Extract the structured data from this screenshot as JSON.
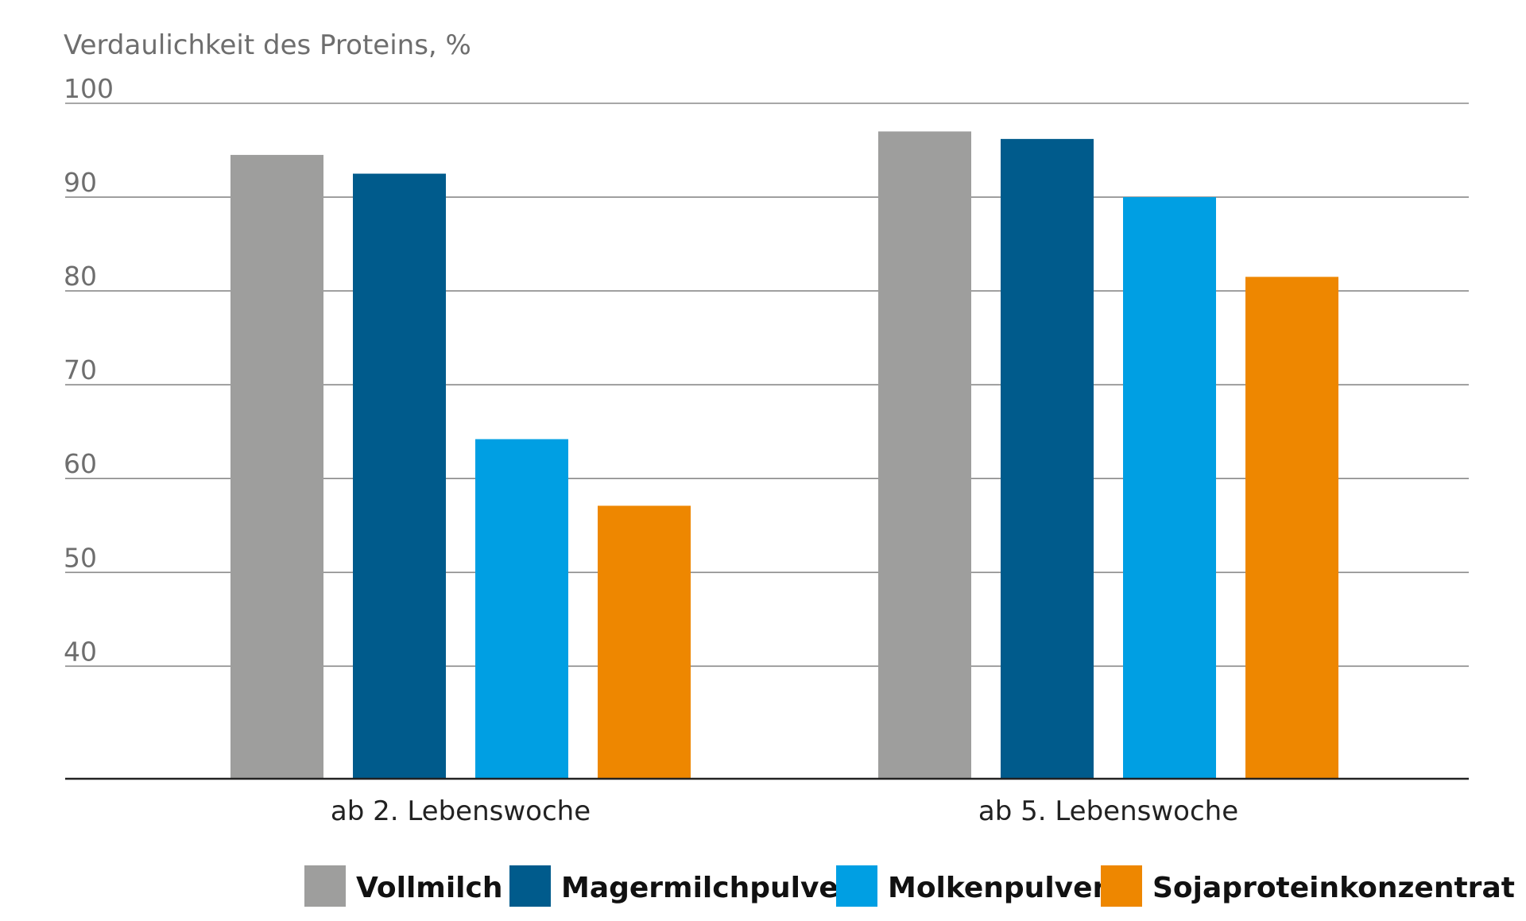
{
  "chart_data": {
    "type": "bar",
    "title": "",
    "ylabel": "Verdaulichkeit des Proteins, %",
    "xlabel": "",
    "categories": [
      "ab 2. Lebenswoche",
      "ab 5. Lebenswoche"
    ],
    "yticks": [
      40,
      50,
      60,
      70,
      80,
      90,
      100
    ],
    "ylim": [
      28,
      100
    ],
    "grid": true,
    "legend_position": "bottom-right",
    "series": [
      {
        "name": "Vollmilch",
        "color": "#9e9e9d",
        "values": [
          94.5,
          97
        ]
      },
      {
        "name": "Magermilchpulver",
        "color": "#005b8c",
        "values": [
          92.5,
          96.2
        ]
      },
      {
        "name": "Molkenpulver",
        "color": "#009fe3",
        "values": [
          64.2,
          90
        ]
      },
      {
        "name": "Sojaproteinkonzentrat",
        "color": "#ee8700",
        "values": [
          57.1,
          81.5
        ]
      }
    ]
  }
}
